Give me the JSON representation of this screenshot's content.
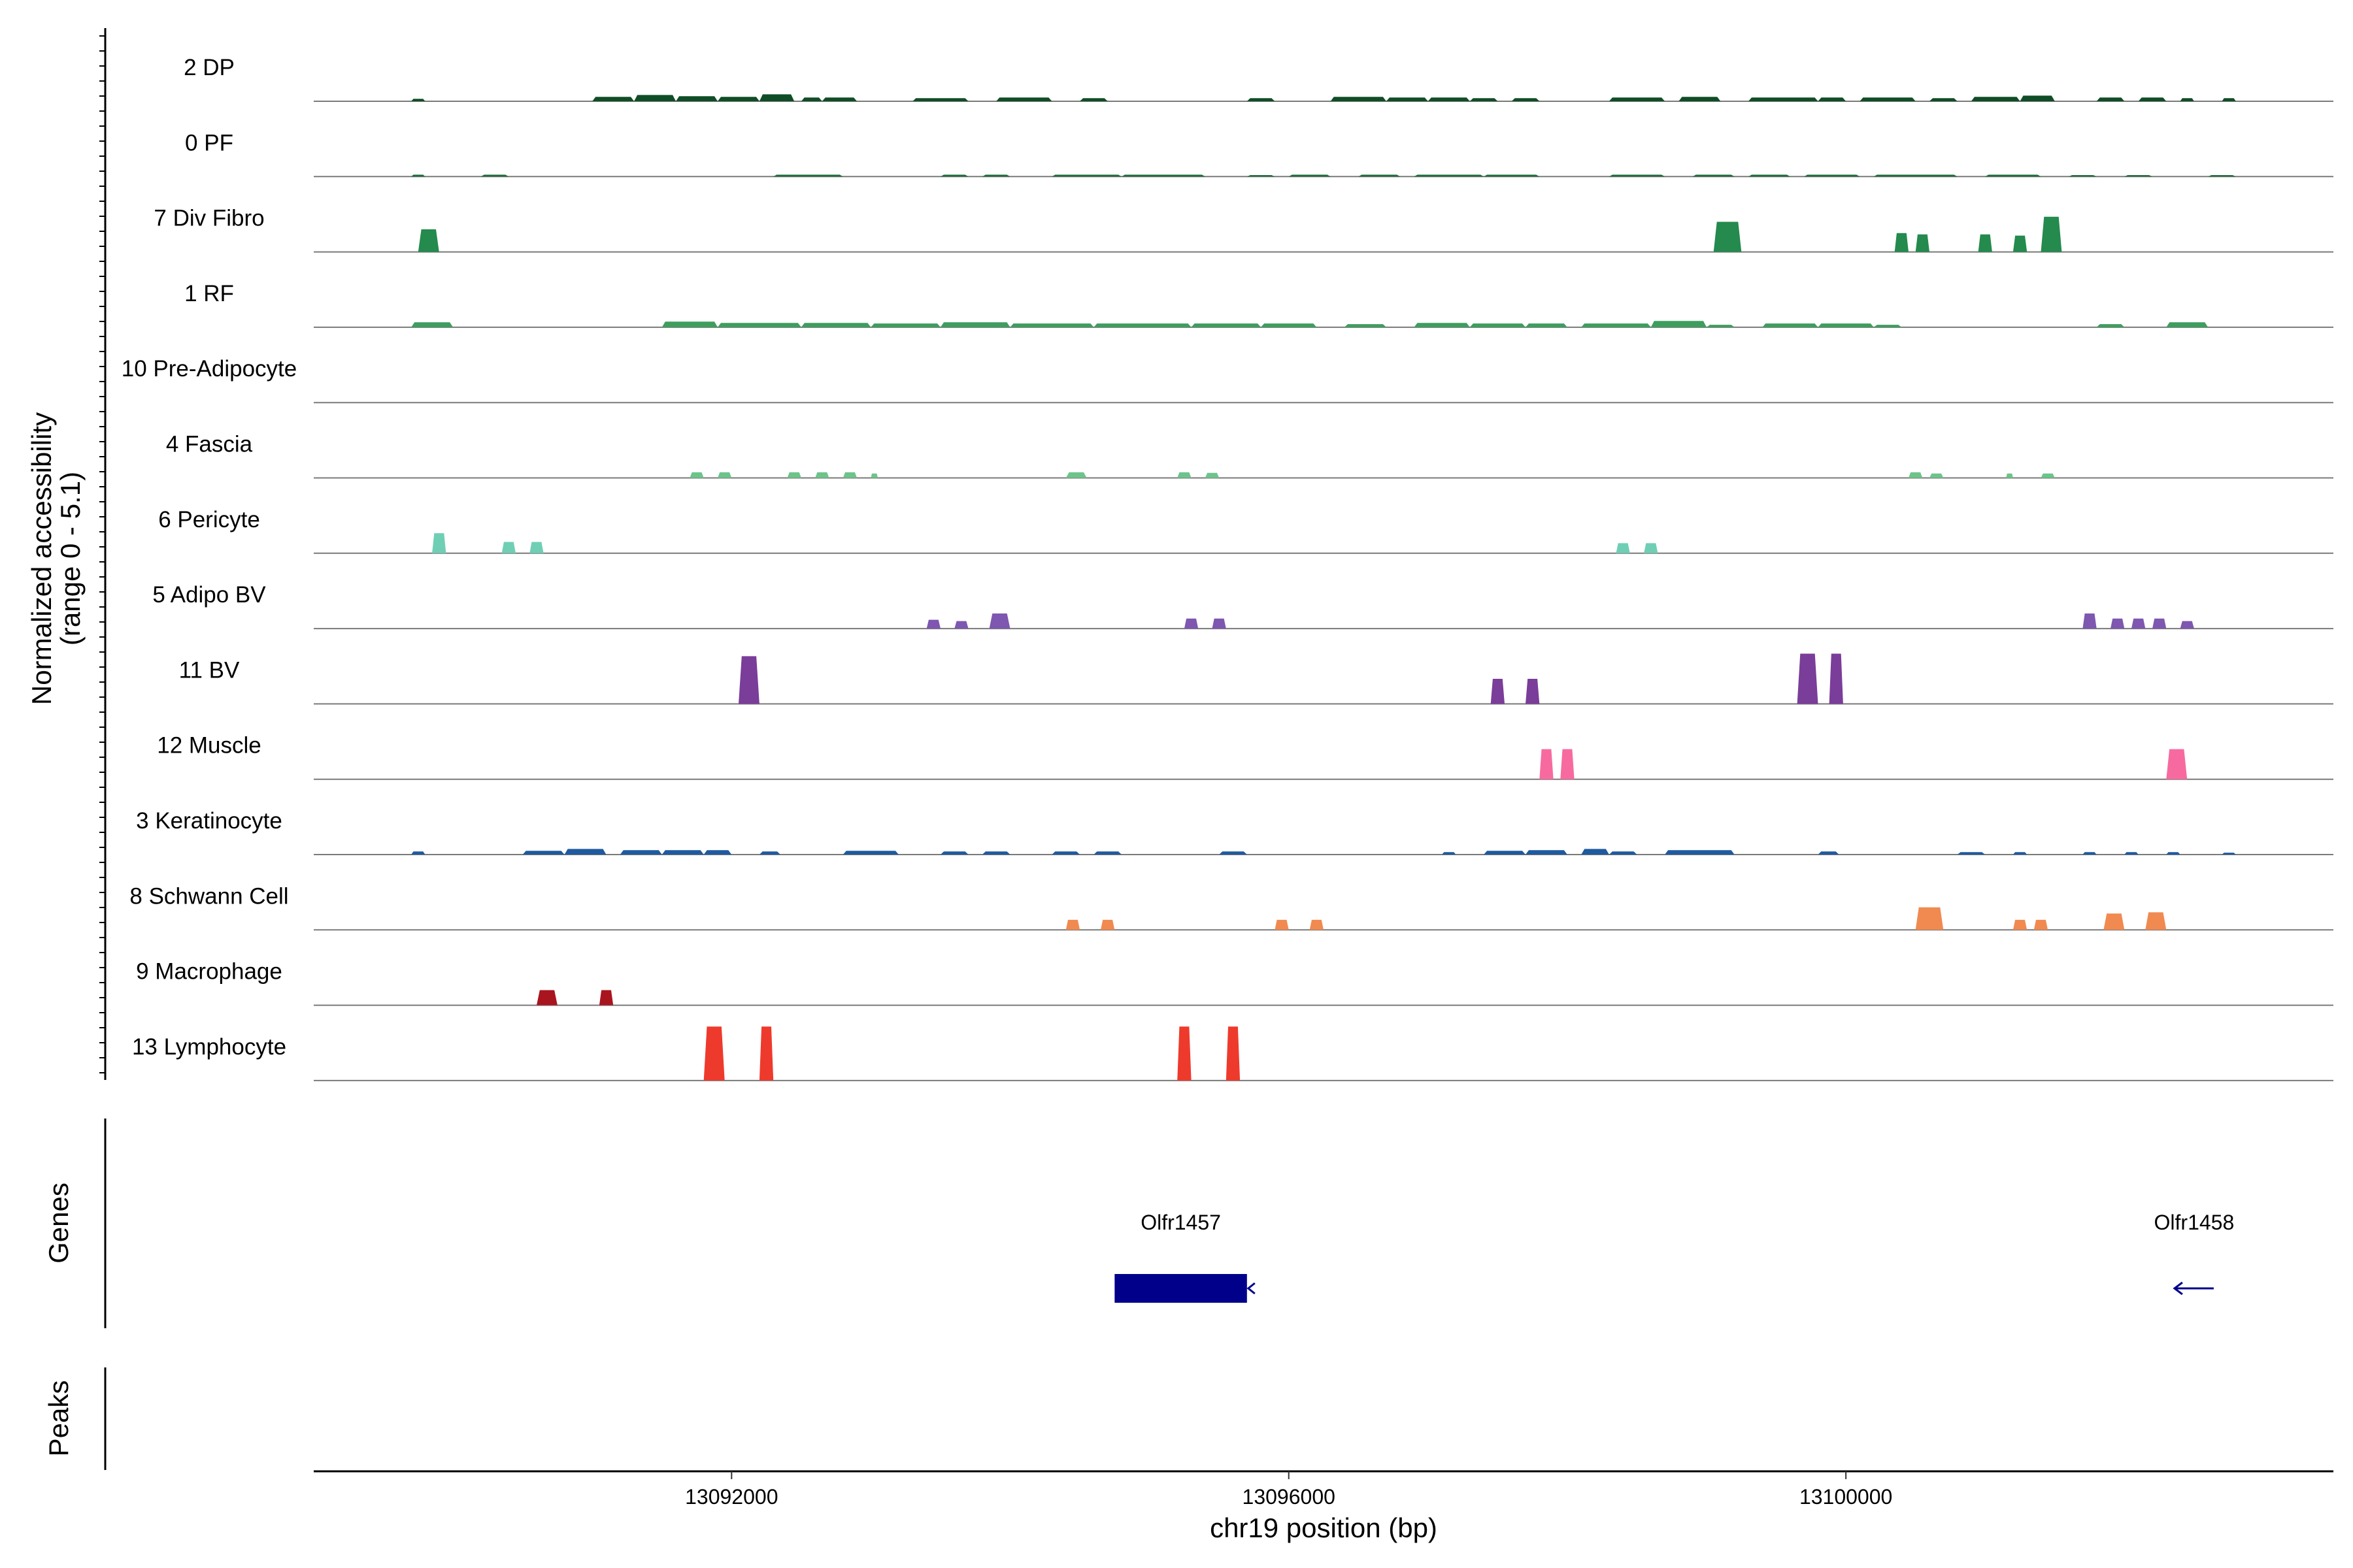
{
  "chart_data": {
    "type": "area",
    "ylabel_lines": [
      "Normalized accessibility",
      "(range 0 - 5.1)"
    ],
    "xlabel": "chr19 position (bp)",
    "x_ticks": [
      13092000,
      13096000,
      13100000
    ],
    "x_tick_labels": [
      "13092000",
      "13096000",
      "13100000"
    ],
    "xlim": [
      13089000,
      13103500
    ],
    "y_range": [
      0,
      5.1
    ],
    "genes_label": "Genes",
    "peaks_label": "Peaks",
    "tracks": [
      {
        "name": "2 DP",
        "color": "#0f4d26",
        "segments": [
          [
            13089700,
            13089800,
            0.2
          ],
          [
            13091000,
            13091300,
            0.35
          ],
          [
            13091300,
            13091600,
            0.5
          ],
          [
            13091600,
            13091900,
            0.4
          ],
          [
            13091900,
            13092200,
            0.35
          ],
          [
            13092200,
            13092450,
            0.55
          ],
          [
            13092500,
            13092650,
            0.3
          ],
          [
            13092650,
            13092900,
            0.3
          ],
          [
            13093300,
            13093700,
            0.25
          ],
          [
            13093900,
            13094300,
            0.3
          ],
          [
            13094500,
            13094700,
            0.25
          ],
          [
            13095700,
            13095900,
            0.25
          ],
          [
            13096300,
            13096700,
            0.35
          ],
          [
            13096700,
            13097000,
            0.3
          ],
          [
            13097000,
            13097300,
            0.3
          ],
          [
            13097300,
            13097500,
            0.25
          ],
          [
            13097600,
            13097800,
            0.25
          ],
          [
            13098300,
            13098700,
            0.3
          ],
          [
            13098800,
            13099100,
            0.35
          ],
          [
            13099300,
            13099800,
            0.3
          ],
          [
            13099800,
            13100000,
            0.3
          ],
          [
            13100100,
            13100500,
            0.3
          ],
          [
            13100600,
            13100800,
            0.25
          ],
          [
            13100900,
            13101250,
            0.35
          ],
          [
            13101250,
            13101500,
            0.45
          ],
          [
            13101800,
            13102000,
            0.3
          ],
          [
            13102100,
            13102300,
            0.3
          ],
          [
            13102400,
            13102500,
            0.25
          ],
          [
            13102700,
            13102800,
            0.25
          ]
        ]
      },
      {
        "name": "0 PF",
        "color": "#1d6b3a",
        "segments": [
          [
            13089700,
            13089800,
            0.15
          ],
          [
            13090200,
            13090400,
            0.15
          ],
          [
            13092300,
            13092800,
            0.15
          ],
          [
            13093500,
            13093700,
            0.15
          ],
          [
            13093800,
            13094000,
            0.15
          ],
          [
            13094300,
            13094800,
            0.15
          ],
          [
            13094800,
            13095400,
            0.15
          ],
          [
            13095700,
            13095900,
            0.12
          ],
          [
            13096000,
            13096300,
            0.15
          ],
          [
            13096500,
            13096800,
            0.15
          ],
          [
            13096900,
            13097400,
            0.15
          ],
          [
            13097400,
            13097800,
            0.15
          ],
          [
            13098300,
            13098700,
            0.15
          ],
          [
            13098900,
            13099200,
            0.15
          ],
          [
            13099300,
            13099600,
            0.15
          ],
          [
            13099700,
            13100100,
            0.15
          ],
          [
            13100200,
            13100800,
            0.15
          ],
          [
            13101000,
            13101400,
            0.15
          ],
          [
            13101600,
            13101800,
            0.12
          ],
          [
            13102000,
            13102200,
            0.12
          ],
          [
            13102600,
            13102800,
            0.12
          ]
        ]
      },
      {
        "name": "7 Div Fibro",
        "color": "#248a4d",
        "segments": [
          [
            13089750,
            13089900,
            1.8
          ],
          [
            13099050,
            13099250,
            2.4
          ],
          [
            13100350,
            13100450,
            1.5
          ],
          [
            13100500,
            13100600,
            1.4
          ],
          [
            13100950,
            13101050,
            1.4
          ],
          [
            13101200,
            13101300,
            1.3
          ],
          [
            13101400,
            13101550,
            2.8
          ]
        ]
      },
      {
        "name": "1 RF",
        "color": "#3d9e5e",
        "segments": [
          [
            13089700,
            13090000,
            0.4
          ],
          [
            13091500,
            13091900,
            0.45
          ],
          [
            13091900,
            13092500,
            0.35
          ],
          [
            13092500,
            13093000,
            0.35
          ],
          [
            13093000,
            13093500,
            0.3
          ],
          [
            13093500,
            13094000,
            0.4
          ],
          [
            13094000,
            13094600,
            0.3
          ],
          [
            13094600,
            13095300,
            0.3
          ],
          [
            13095300,
            13095800,
            0.3
          ],
          [
            13095800,
            13096200,
            0.3
          ],
          [
            13096400,
            13096700,
            0.25
          ],
          [
            13096900,
            13097300,
            0.35
          ],
          [
            13097300,
            13097700,
            0.3
          ],
          [
            13097700,
            13098000,
            0.3
          ],
          [
            13098100,
            13098600,
            0.3
          ],
          [
            13098600,
            13099000,
            0.5
          ],
          [
            13099000,
            13099200,
            0.2
          ],
          [
            13099400,
            13099800,
            0.3
          ],
          [
            13099800,
            13100200,
            0.3
          ],
          [
            13100200,
            13100400,
            0.2
          ],
          [
            13101800,
            13102000,
            0.25
          ],
          [
            13102300,
            13102600,
            0.4
          ]
        ]
      },
      {
        "name": "10 Pre-Adipocyte",
        "color": "#4cae6e",
        "segments": []
      },
      {
        "name": "4 Fascia",
        "color": "#6dc48a",
        "segments": [
          [
            13091700,
            13091800,
            0.45
          ],
          [
            13091900,
            13092000,
            0.45
          ],
          [
            13092400,
            13092500,
            0.45
          ],
          [
            13092600,
            13092700,
            0.45
          ],
          [
            13092800,
            13092900,
            0.45
          ],
          [
            13093000,
            13093050,
            0.35
          ],
          [
            13094400,
            13094550,
            0.45
          ],
          [
            13095200,
            13095300,
            0.45
          ],
          [
            13095400,
            13095500,
            0.4
          ],
          [
            13100450,
            13100550,
            0.45
          ],
          [
            13100600,
            13100700,
            0.35
          ],
          [
            13101150,
            13101200,
            0.35
          ],
          [
            13101400,
            13101500,
            0.35
          ]
        ]
      },
      {
        "name": "6 Pericyte",
        "color": "#6fcfb5",
        "segments": [
          [
            13089850,
            13089950,
            1.6
          ],
          [
            13090350,
            13090450,
            0.9
          ],
          [
            13090550,
            13090650,
            0.9
          ],
          [
            13098350,
            13098450,
            0.8
          ],
          [
            13098550,
            13098650,
            0.8
          ]
        ]
      },
      {
        "name": "5 Adipo BV",
        "color": "#7e57b0",
        "segments": [
          [
            13093400,
            13093500,
            0.7
          ],
          [
            13093600,
            13093700,
            0.6
          ],
          [
            13093850,
            13094000,
            1.2
          ],
          [
            13095250,
            13095350,
            0.8
          ],
          [
            13095450,
            13095550,
            0.8
          ],
          [
            13101700,
            13101800,
            1.2
          ],
          [
            13101900,
            13102000,
            0.8
          ],
          [
            13102050,
            13102150,
            0.8
          ],
          [
            13102200,
            13102300,
            0.8
          ],
          [
            13102400,
            13102500,
            0.6
          ]
        ]
      },
      {
        "name": "11 BV",
        "color": "#7a3d99",
        "segments": [
          [
            13092050,
            13092200,
            3.8
          ],
          [
            13097450,
            13097550,
            2.0
          ],
          [
            13097700,
            13097800,
            2.0
          ],
          [
            13099650,
            13099800,
            4.0
          ],
          [
            13099880,
            13099980,
            4.0
          ]
        ]
      },
      {
        "name": "12 Muscle",
        "color": "#f76aa0",
        "segments": [
          [
            13097800,
            13097900,
            2.4
          ],
          [
            13097950,
            13098050,
            2.4
          ],
          [
            13102300,
            13102450,
            2.4
          ]
        ]
      },
      {
        "name": "3 Keratinocyte",
        "color": "#1f5a9e",
        "segments": [
          [
            13089700,
            13089800,
            0.25
          ],
          [
            13090500,
            13090800,
            0.3
          ],
          [
            13090800,
            13091100,
            0.45
          ],
          [
            13091200,
            13091500,
            0.35
          ],
          [
            13091500,
            13091800,
            0.35
          ],
          [
            13091800,
            13092000,
            0.35
          ],
          [
            13092200,
            13092350,
            0.25
          ],
          [
            13092800,
            13093200,
            0.3
          ],
          [
            13093500,
            13093700,
            0.25
          ],
          [
            13093800,
            13094000,
            0.25
          ],
          [
            13094300,
            13094500,
            0.25
          ],
          [
            13094600,
            13094800,
            0.25
          ],
          [
            13095500,
            13095700,
            0.25
          ],
          [
            13097100,
            13097200,
            0.2
          ],
          [
            13097400,
            13097700,
            0.3
          ],
          [
            13097700,
            13098000,
            0.35
          ],
          [
            13098100,
            13098300,
            0.45
          ],
          [
            13098300,
            13098500,
            0.25
          ],
          [
            13098700,
            13099200,
            0.35
          ],
          [
            13099800,
            13099950,
            0.25
          ],
          [
            13100800,
            13101000,
            0.2
          ],
          [
            13101200,
            13101300,
            0.2
          ],
          [
            13101700,
            13101800,
            0.2
          ],
          [
            13102000,
            13102100,
            0.2
          ],
          [
            13102300,
            13102400,
            0.2
          ],
          [
            13102700,
            13102800,
            0.15
          ]
        ]
      },
      {
        "name": "8 Schwann Cell",
        "color": "#f08a50",
        "segments": [
          [
            13094400,
            13094500,
            0.8
          ],
          [
            13094650,
            13094750,
            0.8
          ],
          [
            13095900,
            13096000,
            0.8
          ],
          [
            13096150,
            13096250,
            0.8
          ],
          [
            13100500,
            13100700,
            1.8
          ],
          [
            13101200,
            13101300,
            0.8
          ],
          [
            13101350,
            13101450,
            0.8
          ],
          [
            13101850,
            13102000,
            1.3
          ],
          [
            13102150,
            13102300,
            1.4
          ]
        ]
      },
      {
        "name": "9 Macrophage",
        "color": "#a8151f",
        "segments": [
          [
            13090600,
            13090750,
            1.2
          ],
          [
            13091050,
            13091150,
            1.2
          ]
        ]
      },
      {
        "name": "13 Lymphocyte",
        "color": "#ee3a2c",
        "segments": [
          [
            13091800,
            13091950,
            4.3
          ],
          [
            13092200,
            13092300,
            4.3
          ],
          [
            13095200,
            13095300,
            4.3
          ],
          [
            13095550,
            13095650,
            4.3
          ]
        ]
      }
    ],
    "genes": [
      {
        "name": "Olfr1457",
        "start": 13094750,
        "end": 13095700,
        "strand": "-"
      },
      {
        "name": "Olfr1458",
        "start": 13102400,
        "end": 13102600,
        "strand": "-"
      }
    ]
  }
}
